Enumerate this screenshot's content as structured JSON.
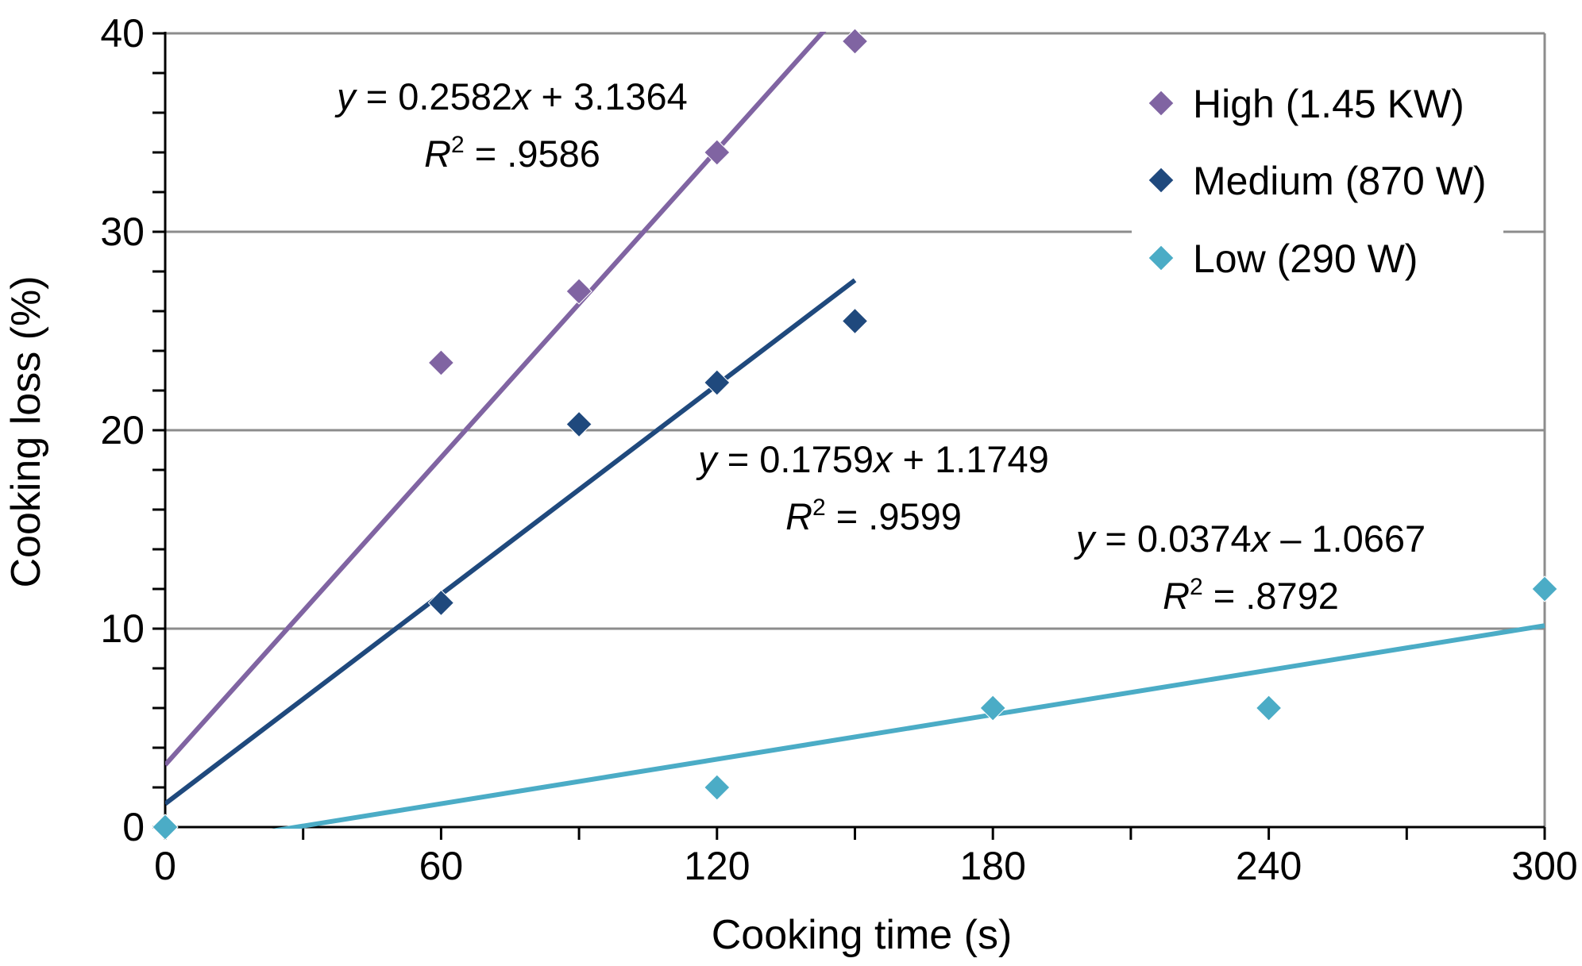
{
  "chart_data": {
    "type": "scatter",
    "xlabel": "Cooking time (s)",
    "ylabel": "Cooking loss (%)",
    "xlim": [
      0,
      300
    ],
    "ylim": [
      0,
      40
    ],
    "x_ticks": [
      "0",
      "60",
      "120",
      "180",
      "240",
      "300"
    ],
    "y_ticks": [
      "0",
      "10",
      "20",
      "30",
      "40"
    ],
    "grid": "horizontal",
    "legend_position": "top-right",
    "series": [
      {
        "name": "High (1.45 KW)",
        "color": "#8064a2",
        "marker": "diamond",
        "points": [
          [
            60,
            23.4
          ],
          [
            90,
            27.0
          ],
          [
            120,
            34.0
          ],
          [
            150,
            39.6
          ]
        ],
        "trendline": {
          "slope": 0.2582,
          "intercept": 3.1364,
          "x_range": [
            0,
            150
          ]
        },
        "equation": {
          "y_label": "y",
          "x_label": "x",
          "eq_prefix": " = 0.2582",
          "eq_suffix": " + 3.1364",
          "r2_label": "R",
          "r2_sup": "2",
          "r2_value": " = .9586"
        }
      },
      {
        "name": "Medium (870 W)",
        "color": "#1f497d",
        "marker": "diamond",
        "points": [
          [
            60,
            11.3
          ],
          [
            90,
            20.3
          ],
          [
            120,
            22.4
          ],
          [
            150,
            25.5
          ]
        ],
        "trendline": {
          "slope": 0.1759,
          "intercept": 1.1749,
          "x_range": [
            0,
            150
          ]
        },
        "equation": {
          "y_label": "y",
          "x_label": "x",
          "eq_prefix": " = 0.1759",
          "eq_suffix": " + 1.1749",
          "r2_label": "R",
          "r2_sup": "2",
          "r2_value": " = .9599"
        }
      },
      {
        "name": "Low (290 W)",
        "color": "#4bacc6",
        "marker": "diamond",
        "points": [
          [
            0,
            0
          ],
          [
            120,
            2
          ],
          [
            180,
            6
          ],
          [
            240,
            6
          ],
          [
            300,
            12
          ]
        ],
        "trendline": {
          "slope": 0.0374,
          "intercept": -1.0667,
          "x_range": [
            0,
            300
          ]
        },
        "equation": {
          "y_label": "y",
          "x_label": "x",
          "eq_prefix": " = 0.0374",
          "eq_suffix": " – 1.0667",
          "r2_label": "R",
          "r2_sup": "2",
          "r2_value": " = .8792"
        }
      }
    ]
  }
}
